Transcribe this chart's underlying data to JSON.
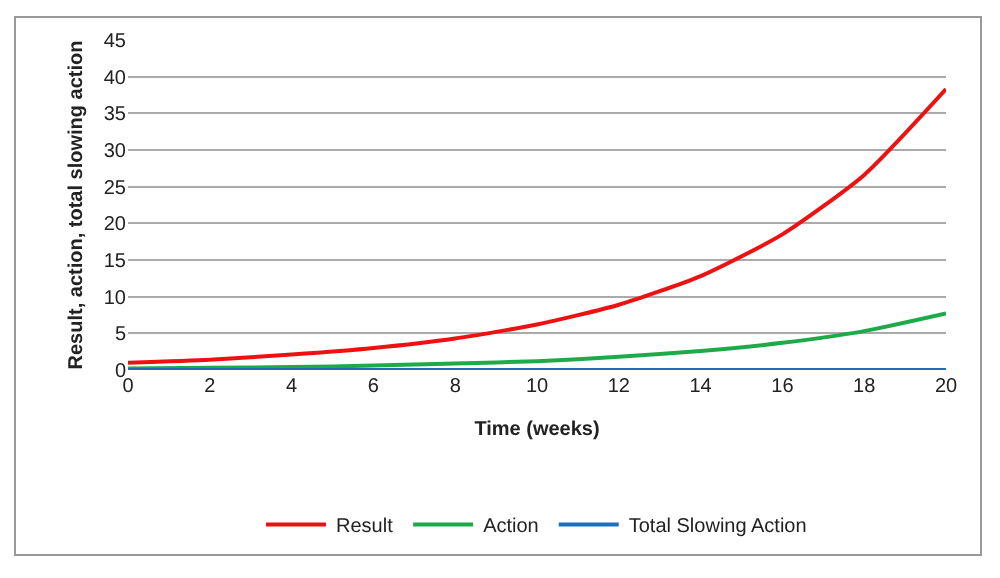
{
  "chart_data": {
    "type": "line",
    "xlabel": "Time (weeks)",
    "ylabel": "Result, action, total slowing action",
    "x": [
      0,
      2,
      4,
      6,
      8,
      10,
      12,
      14,
      16,
      18,
      20
    ],
    "series": [
      {
        "name": "Result",
        "color": "#ee1111",
        "values": [
          1.0,
          1.4,
          2.1,
          3.0,
          4.3,
          6.2,
          8.9,
          12.8,
          18.5,
          26.6,
          38.3
        ]
      },
      {
        "name": "Action",
        "color": "#1faa4a",
        "values": [
          0.2,
          0.3,
          0.4,
          0.6,
          0.9,
          1.2,
          1.8,
          2.6,
          3.7,
          5.3,
          7.7
        ]
      },
      {
        "name": "Total Slowing Action",
        "color": "#1f6fbf",
        "values": [
          0,
          0,
          0,
          0,
          0,
          0,
          0,
          0,
          0,
          0,
          0
        ]
      }
    ],
    "xlim": [
      0,
      20
    ],
    "xticks": [
      0,
      2,
      4,
      6,
      8,
      10,
      12,
      14,
      16,
      18,
      20
    ],
    "ylim": [
      0,
      45
    ],
    "yticks": [
      0,
      5,
      10,
      15,
      20,
      25,
      30,
      35,
      40,
      45
    ],
    "grid": "y",
    "legend": "bottom",
    "marker": "none",
    "line_style": "solid"
  }
}
